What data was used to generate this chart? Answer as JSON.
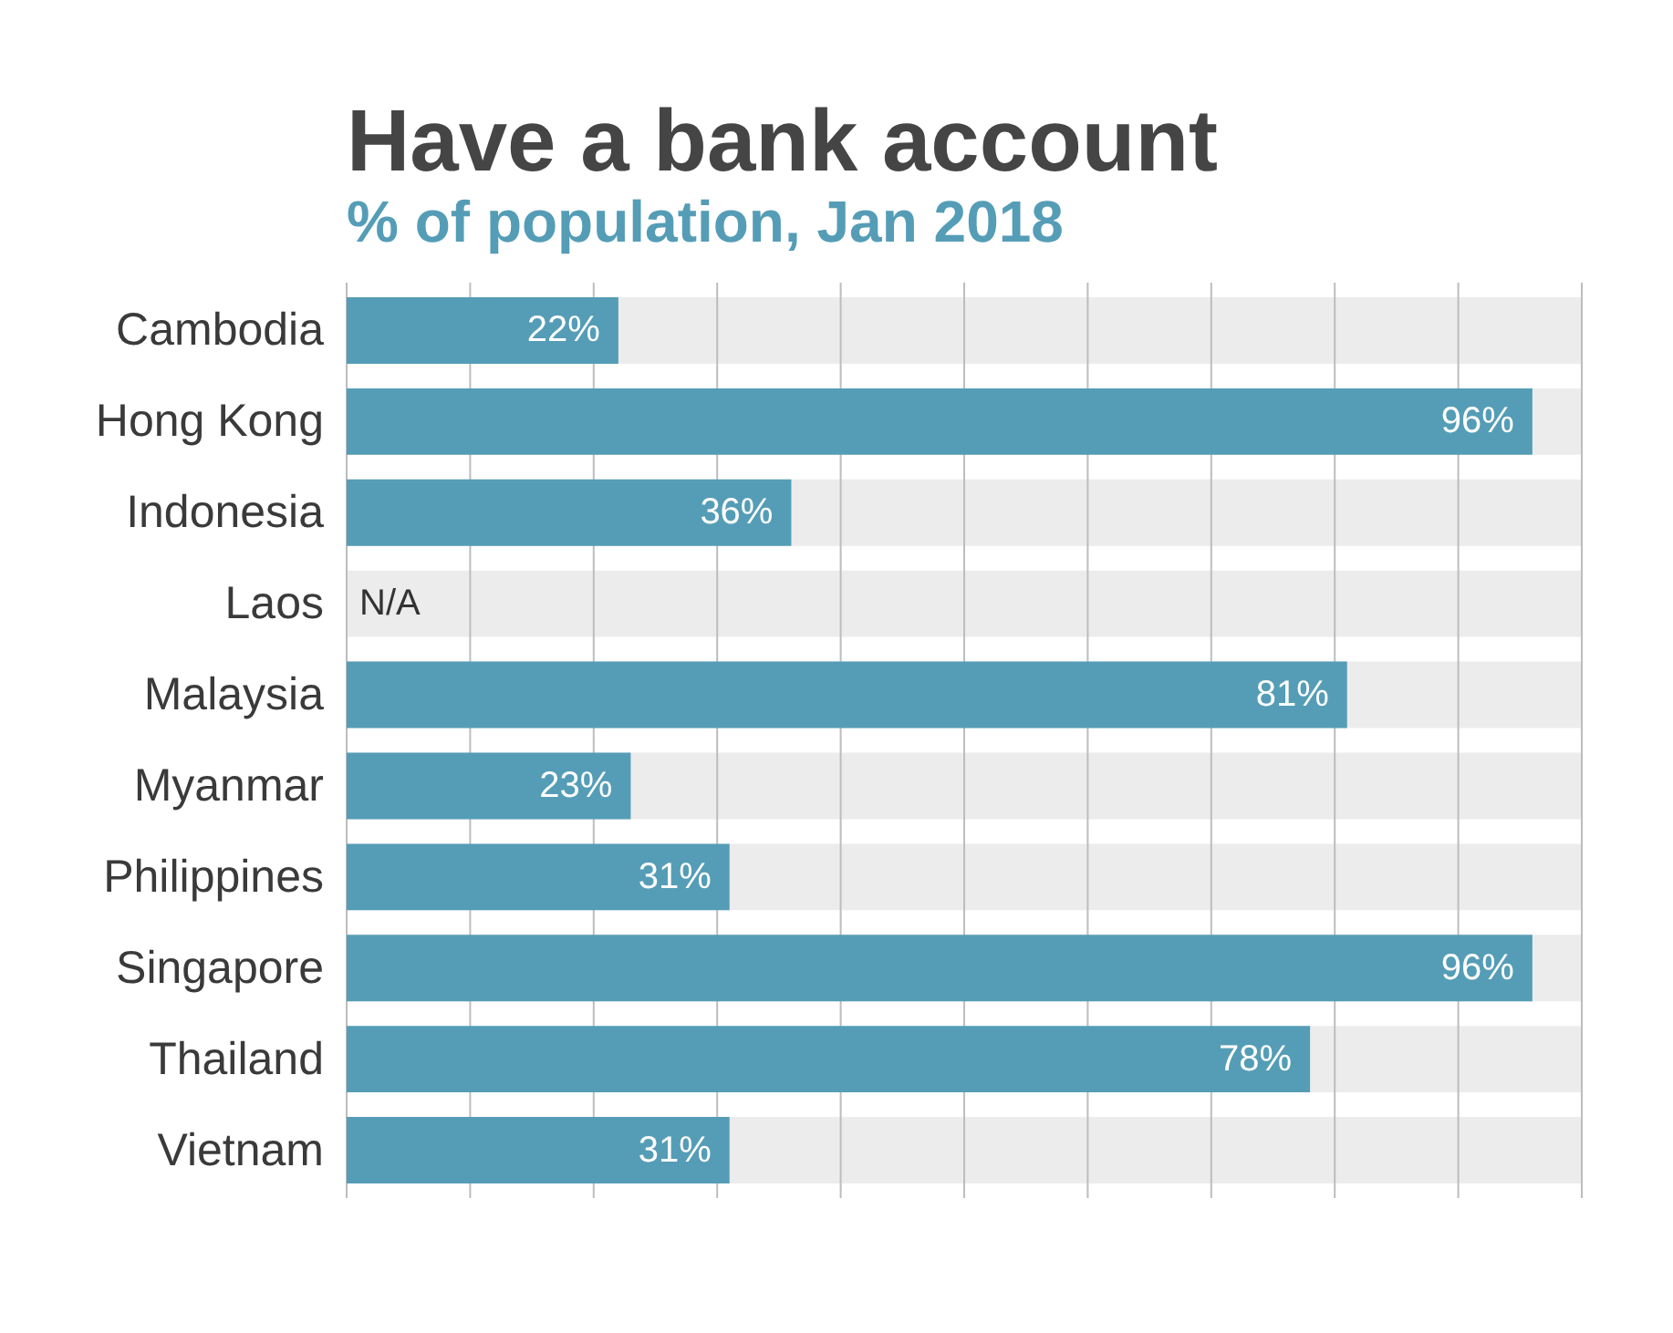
{
  "chart_data": {
    "type": "bar",
    "orientation": "horizontal",
    "title": "Have a bank account",
    "subtitle": "% of population, Jan 2018",
    "categories": [
      "Cambodia",
      "Hong Kong",
      "Indonesia",
      "Laos",
      "Malaysia",
      "Myanmar",
      "Philippines",
      "Singapore",
      "Thailand",
      "Vietnam"
    ],
    "values": [
      22,
      96,
      36,
      null,
      81,
      23,
      31,
      96,
      78,
      31
    ],
    "color": "#559db6",
    "value_labels": [
      "22%",
      "96%",
      "36%",
      "N/A",
      "81%",
      "23%",
      "31%",
      "96%",
      "78%",
      "31%"
    ],
    "xlim": [
      0,
      100
    ],
    "xticks": [
      {
        "value": 0,
        "label": null
      },
      {
        "value": 10,
        "label": null
      },
      {
        "value": 20,
        "label": null
      },
      {
        "value": 30,
        "label": null
      },
      {
        "value": 40,
        "label": null
      },
      {
        "value": 50,
        "label": null
      },
      {
        "value": 60,
        "label": null
      },
      {
        "value": 70,
        "label": null
      },
      {
        "value": 80,
        "label": null
      },
      {
        "value": 90,
        "label": null
      },
      {
        "value": 100,
        "label": null
      }
    ],
    "tick_labels": "y",
    "grid": "x",
    "bands": [
      {
        "axis": "y",
        "from": "Cambodia",
        "to": "Cambodia",
        "color": "#ececec"
      },
      {
        "axis": "y",
        "from": "Hong Kong",
        "to": "Hong Kong",
        "color": "#ececec"
      },
      {
        "axis": "y",
        "from": "Indonesia",
        "to": "Indonesia",
        "color": "#ececec"
      },
      {
        "axis": "y",
        "from": "Laos",
        "to": "Laos",
        "color": "#ececec"
      },
      {
        "axis": "y",
        "from": "Malaysia",
        "to": "Malaysia",
        "color": "#ececec"
      },
      {
        "axis": "y",
        "from": "Myanmar",
        "to": "Myanmar",
        "color": "#ececec"
      },
      {
        "axis": "y",
        "from": "Philippines",
        "to": "Philippines",
        "color": "#ececec"
      },
      {
        "axis": "y",
        "from": "Singapore",
        "to": "Singapore",
        "color": "#ececec"
      },
      {
        "axis": "y",
        "from": "Thailand",
        "to": "Thailand",
        "color": "#ececec"
      },
      {
        "axis": "y",
        "from": "Vietnam",
        "to": "Vietnam",
        "color": "#ececec"
      }
    ]
  }
}
